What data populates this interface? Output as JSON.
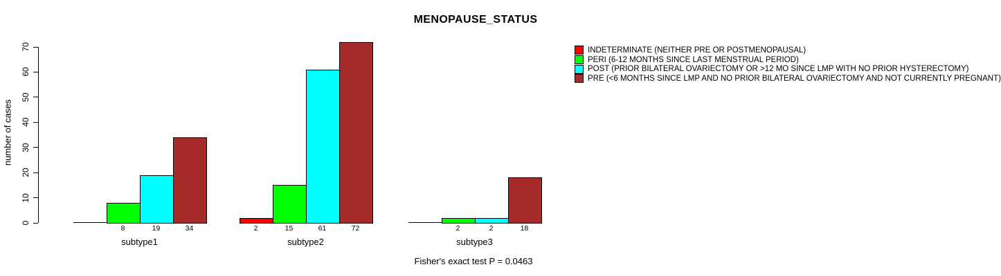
{
  "title": "MENOPAUSE_STATUS",
  "footer": "Fisher's exact test P = 0.0463",
  "chart_data": {
    "type": "bar",
    "title": "MENOPAUSE_STATUS",
    "xlabel": "",
    "ylabel": "number of cases",
    "ylim": [
      0,
      70
    ],
    "yticks": [
      0,
      10,
      20,
      30,
      40,
      50,
      60,
      70
    ],
    "grid": false,
    "legend_position": "right",
    "bar_value_labels": "shown under each nonzero bar",
    "annotation": "Fisher's exact test P = 0.0463",
    "categories": [
      "subtype1",
      "subtype2",
      "subtype3"
    ],
    "series": [
      {
        "name": "indeterminate",
        "label": "INDETERMINATE (NEITHER PRE OR POSTMENOPAUSAL)",
        "color": "#FF0000",
        "values": [
          0,
          2,
          0
        ]
      },
      {
        "name": "peri",
        "label": "PERI (6-12 MONTHS SINCE LAST MENSTRUAL PERIOD)",
        "color": "#00FF00",
        "values": [
          8,
          15,
          2
        ]
      },
      {
        "name": "post",
        "label": "POST (PRIOR BILATERAL OVARIECTOMY OR >12 MO SINCE LMP WITH NO PRIOR HYSTERECTOMY)",
        "color": "#00FFFF",
        "values": [
          19,
          61,
          2
        ]
      },
      {
        "name": "pre",
        "label": "PRE (<6 MONTHS SINCE LMP AND NO PRIOR BILATERAL OVARIECTOMY AND NOT CURRENTLY PREGNANT)",
        "color": "#A52A2A",
        "values": [
          34,
          72,
          18
        ]
      }
    ]
  }
}
